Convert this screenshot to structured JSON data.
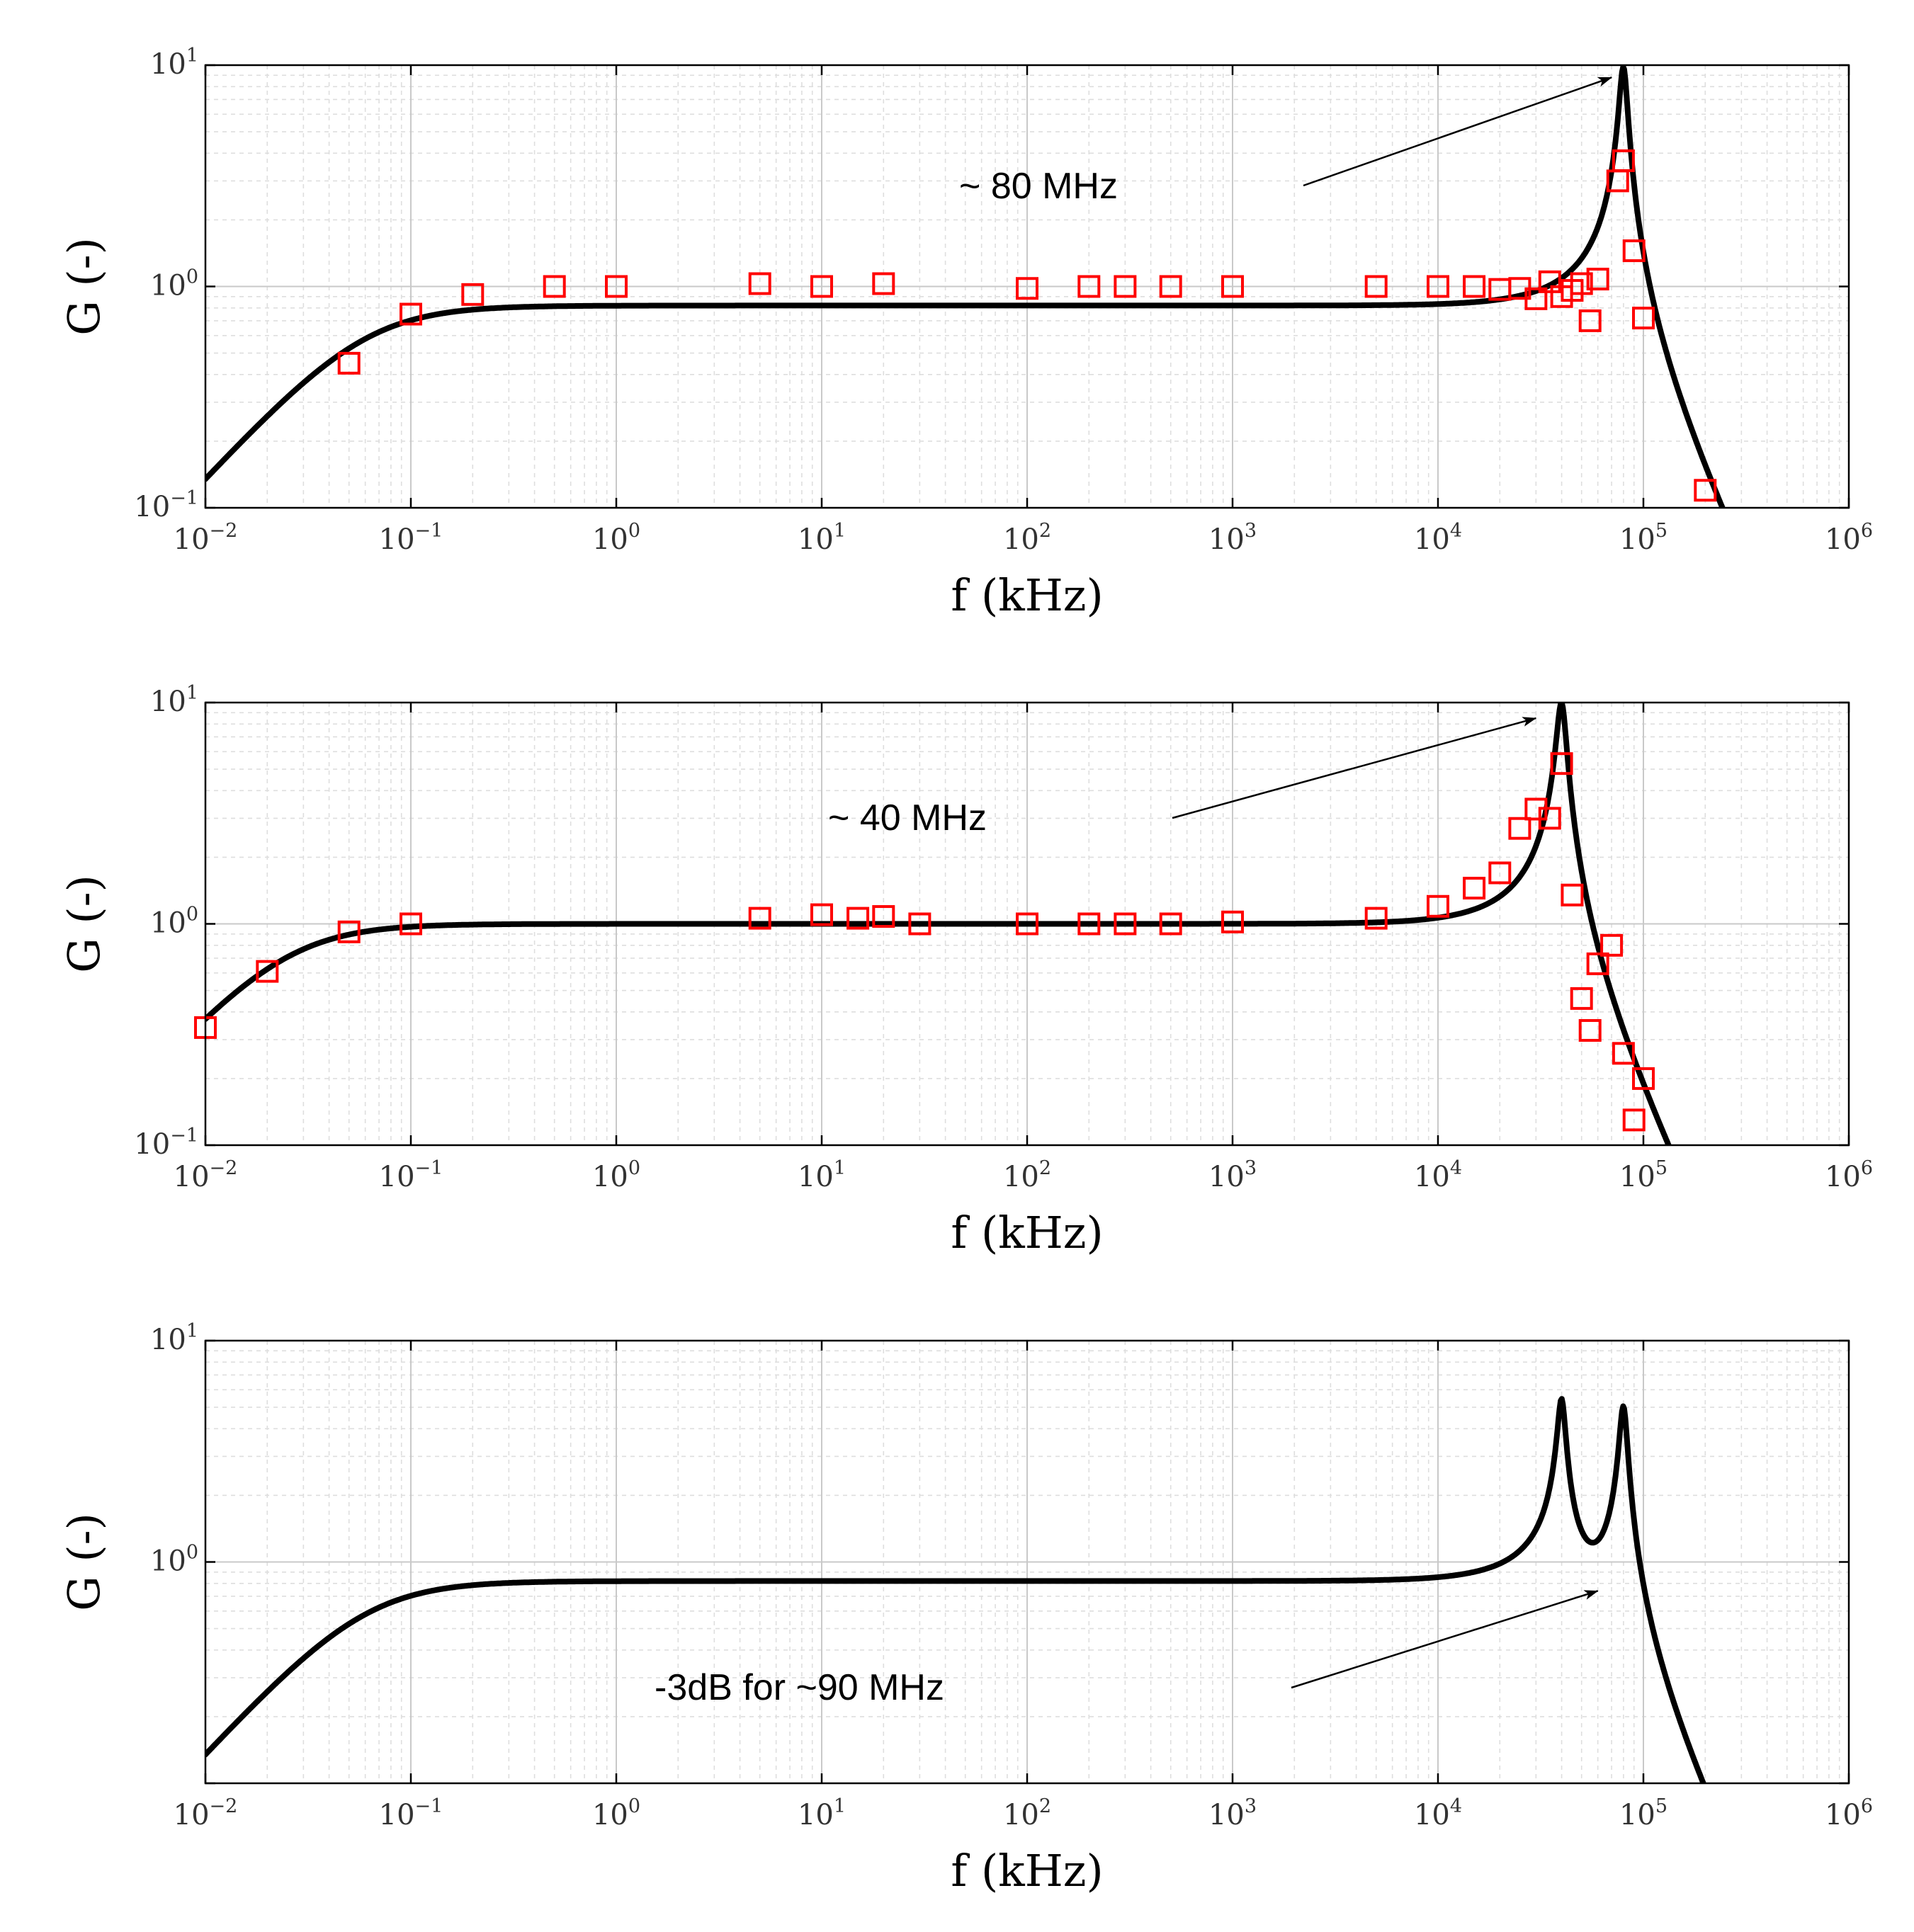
{
  "chart_data": [
    {
      "type": "line",
      "title": "",
      "xlabel": "f (kHz)",
      "ylabel": "G (-)",
      "xscale": "log",
      "yscale": "log",
      "xlim": [
        0.01,
        1000000
      ],
      "ylim": [
        0.1,
        10
      ],
      "x_ticks": [
        {
          "base": "10",
          "exp": "−2"
        },
        {
          "base": "10",
          "exp": "−1"
        },
        {
          "base": "10",
          "exp": "0"
        },
        {
          "base": "10",
          "exp": "1"
        },
        {
          "base": "10",
          "exp": "2"
        },
        {
          "base": "10",
          "exp": "3"
        },
        {
          "base": "10",
          "exp": "4"
        },
        {
          "base": "10",
          "exp": "5"
        },
        {
          "base": "10",
          "exp": "6"
        }
      ],
      "y_ticks": [
        {
          "base": "10",
          "exp": "−1",
          "value": 0.1
        },
        {
          "base": "10",
          "exp": "0",
          "value": 1
        },
        {
          "base": "10",
          "exp": "1",
          "value": 10
        }
      ],
      "grid": true,
      "model": {
        "type": "single",
        "gain": 0.82,
        "fc_low": 0.06,
        "f0": 80000,
        "q": 12
      },
      "series": [
        {
          "name": "measured",
          "x": [
            0.05,
            0.1,
            0.2,
            0.5,
            1,
            5,
            10,
            20,
            100,
            200,
            300,
            500,
            1000,
            5000,
            10000,
            15000,
            20000,
            25000,
            30000,
            35000,
            40000,
            45000,
            50000,
            55000,
            60000,
            75000,
            80000,
            90000,
            100000,
            200000
          ],
          "y": [
            0.45,
            0.75,
            0.92,
            1.0,
            1.0,
            1.03,
            1.0,
            1.03,
            0.98,
            1.0,
            1.0,
            1.0,
            1.0,
            1.0,
            1.0,
            1.0,
            0.97,
            0.98,
            0.88,
            1.05,
            0.9,
            0.96,
            1.03,
            0.7,
            1.08,
            3.0,
            3.7,
            1.45,
            0.72,
            0.12
          ]
        }
      ],
      "annotations": [
        {
          "text": "~ 80 MHz",
          "target_x": 70000,
          "target_y": 8.8
        }
      ]
    },
    {
      "type": "line",
      "title": "",
      "xlabel": "f (kHz)",
      "ylabel": "G (-)",
      "xscale": "log",
      "yscale": "log",
      "xlim": [
        0.01,
        1000000
      ],
      "ylim": [
        0.1,
        10
      ],
      "x_ticks": [
        {
          "base": "10",
          "exp": "−2"
        },
        {
          "base": "10",
          "exp": "−1"
        },
        {
          "base": "10",
          "exp": "0"
        },
        {
          "base": "10",
          "exp": "1"
        },
        {
          "base": "10",
          "exp": "2"
        },
        {
          "base": "10",
          "exp": "3"
        },
        {
          "base": "10",
          "exp": "4"
        },
        {
          "base": "10",
          "exp": "5"
        },
        {
          "base": "10",
          "exp": "6"
        }
      ],
      "y_ticks": [
        {
          "base": "10",
          "exp": "−1",
          "value": 0.1
        },
        {
          "base": "10",
          "exp": "0",
          "value": 1
        },
        {
          "base": "10",
          "exp": "1",
          "value": 10
        }
      ],
      "grid": true,
      "model": {
        "type": "single",
        "gain": 1.0,
        "fc_low": 0.025,
        "f0": 40000,
        "q": 10
      },
      "series": [
        {
          "name": "measured",
          "x": [
            0.01,
            0.02,
            0.05,
            0.1,
            5,
            10,
            15,
            20,
            30,
            100,
            200,
            300,
            500,
            1000,
            5000,
            10000,
            15000,
            20000,
            25000,
            30000,
            35000,
            40000,
            45000,
            50000,
            55000,
            60000,
            70000,
            80000,
            90000,
            100000
          ],
          "y": [
            0.34,
            0.61,
            0.92,
            1.0,
            1.06,
            1.1,
            1.06,
            1.08,
            1.0,
            1.0,
            1.0,
            1.0,
            1.0,
            1.02,
            1.06,
            1.2,
            1.45,
            1.7,
            2.7,
            3.3,
            3.0,
            5.3,
            1.35,
            0.46,
            0.33,
            0.66,
            0.8,
            0.26,
            0.13,
            0.2
          ]
        }
      ],
      "annotations": [
        {
          "text": "~ 40 MHz",
          "target_x": 30000,
          "target_y": 8.5
        }
      ]
    },
    {
      "type": "line",
      "title": "",
      "xlabel": "f (kHz)",
      "ylabel": "G (-)",
      "xscale": "log",
      "yscale": "log",
      "xlim": [
        0.01,
        1000000
      ],
      "ylim": [
        0.1,
        10
      ],
      "x_ticks": [
        {
          "base": "10",
          "exp": "−2"
        },
        {
          "base": "10",
          "exp": "−1"
        },
        {
          "base": "10",
          "exp": "0"
        },
        {
          "base": "10",
          "exp": "1"
        },
        {
          "base": "10",
          "exp": "2"
        },
        {
          "base": "10",
          "exp": "3"
        },
        {
          "base": "10",
          "exp": "4"
        },
        {
          "base": "10",
          "exp": "5"
        },
        {
          "base": "10",
          "exp": "6"
        }
      ],
      "y_ticks": [
        {
          "base": "10",
          "exp": "0",
          "value": 1
        },
        {
          "base": "10",
          "exp": "1",
          "value": 10
        }
      ],
      "grid": true,
      "model": {
        "type": "dual",
        "gain": 0.82,
        "fc_low": 0.06,
        "f1": 40000,
        "q1": 12,
        "f2": 80000,
        "q2": 12
      },
      "series": [],
      "annotations": [
        {
          "text": "-3dB for ~90 MHz",
          "target_x": 60000,
          "target_y": 0.74
        }
      ]
    }
  ]
}
